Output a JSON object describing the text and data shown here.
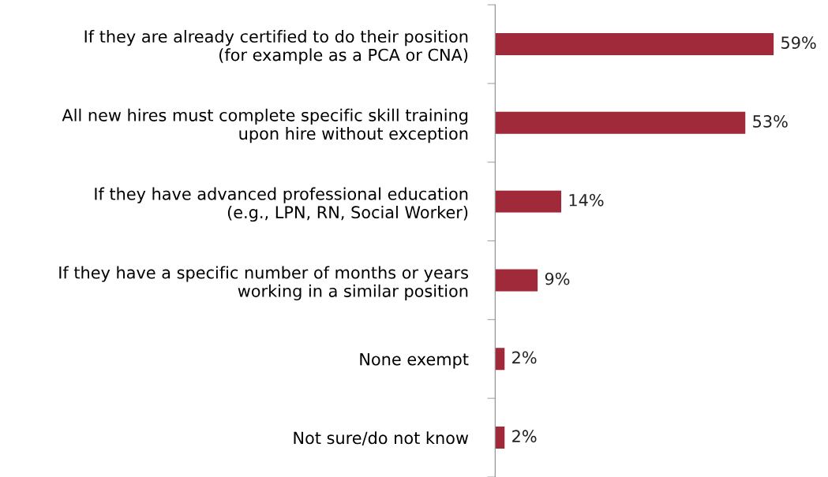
{
  "chart_data": {
    "type": "bar",
    "orientation": "horizontal",
    "categories": [
      "If they are already certified to do their position\n(for example as a PCA or CNA)",
      "All new hires must complete specific skill training\nupon hire without exception",
      "If they have advanced professional education\n(e.g., LPN, RN, Social Worker)",
      "If they have a specific number of months or years\nworking in a similar position",
      "None exempt",
      "Not sure/do not know"
    ],
    "values": [
      59,
      53,
      14,
      9,
      2,
      2
    ],
    "value_labels": [
      "59%",
      "53%",
      "14%",
      "9%",
      "2%",
      "2%"
    ],
    "color": "#a0293a",
    "tick_labels": "y",
    "grid": false,
    "legend": false
  }
}
